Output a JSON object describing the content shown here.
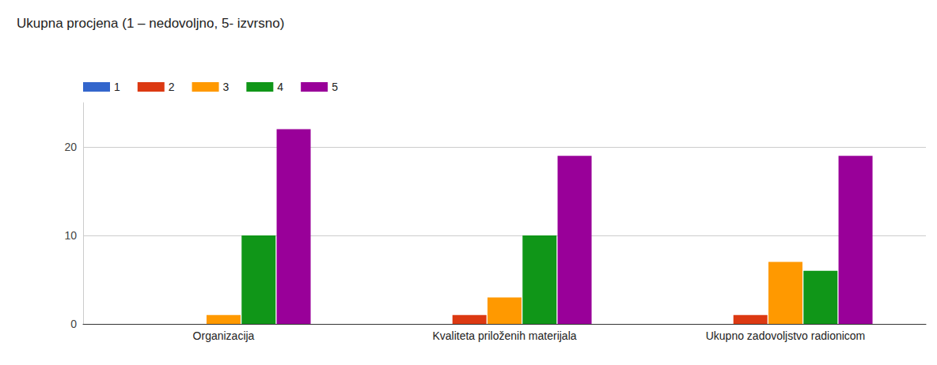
{
  "chart_data": {
    "type": "bar",
    "title": "Ukupna procjena (1 – nedovoljno, 5- izvrsno)",
    "categories": [
      "Organizacija",
      "Kvaliteta priloženih materijala",
      "Ukupno zadovoljstvo radionicom"
    ],
    "series": [
      {
        "name": "1",
        "color": "#3366cc",
        "values": [
          0,
          0,
          0
        ]
      },
      {
        "name": "2",
        "color": "#dc3912",
        "values": [
          0,
          1,
          1
        ]
      },
      {
        "name": "3",
        "color": "#ff9900",
        "values": [
          1,
          3,
          7
        ]
      },
      {
        "name": "4",
        "color": "#109618",
        "values": [
          10,
          10,
          6
        ]
      },
      {
        "name": "5",
        "color": "#990099",
        "values": [
          22,
          19,
          19
        ]
      }
    ],
    "ylim": [
      0,
      25
    ],
    "yticks": [
      0,
      10,
      20
    ],
    "grid": true,
    "legend": "top-left"
  }
}
